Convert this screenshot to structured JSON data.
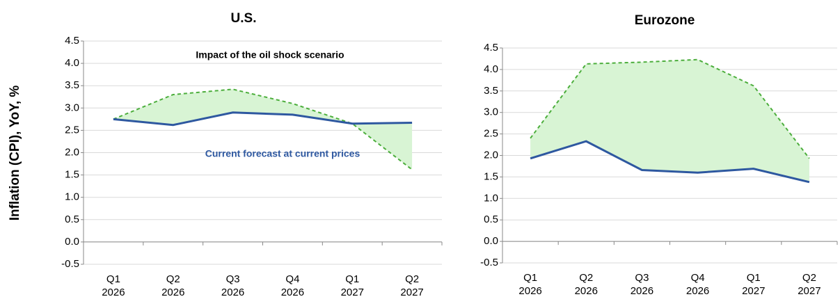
{
  "chart_data": [
    {
      "type": "line",
      "title": "U.S.",
      "ylabel": "Inflation (CPI), YoY, %",
      "annotations": [
        "Impact of the oil shock scenario",
        "Current forecast at current prices"
      ],
      "categories": [
        "Q1 2026",
        "Q2 2026",
        "Q3 2026",
        "Q4 2026",
        "Q1 2027",
        "Q2 2027"
      ],
      "series": [
        {
          "color": "#2e58a0",
          "style": "solid",
          "values": [
            2.75,
            2.62,
            2.9,
            2.85,
            2.65,
            2.67
          ]
        },
        {
          "color": "#4cae3c",
          "style": "dashed",
          "values": [
            2.75,
            3.3,
            3.42,
            3.1,
            2.65,
            1.62
          ]
        }
      ],
      "fill_between_color": "#d8f4d4",
      "ylim": [
        -0.5,
        4.5
      ],
      "yticks": [
        -0.5,
        {
          "value": 0,
          "label": "0.0"
        },
        0.5,
        {
          "value": 1,
          "label": "1.0"
        },
        1.5,
        {
          "value": 2,
          "label": "2.0"
        },
        2.5,
        {
          "value": 3,
          "label": "3.0"
        },
        3.5,
        {
          "value": 4,
          "label": "4.0"
        },
        4.5
      ],
      "grid": true
    },
    {
      "type": "line",
      "title": "Eurozone",
      "categories": [
        "Q1 2026",
        "Q2 2026",
        "Q3 2026",
        "Q4 2026",
        "Q1 2027",
        "Q2 2027"
      ],
      "series": [
        {
          "color": "#2e58a0",
          "style": "solid",
          "values": [
            1.93,
            2.33,
            1.66,
            1.6,
            1.69,
            1.38
          ]
        },
        {
          "color": "#4cae3c",
          "style": "dashed",
          "values": [
            2.4,
            4.13,
            4.17,
            4.23,
            3.62,
            1.93
          ]
        }
      ],
      "fill_between_color": "#d8f4d4",
      "ylim": [
        -0.5,
        4.5
      ],
      "yticks": [
        -0.5,
        {
          "value": 0,
          "label": "0.0"
        },
        0.5,
        {
          "value": 1,
          "label": "1.0"
        },
        1.5,
        {
          "value": 2,
          "label": "2.0"
        },
        2.5,
        {
          "value": 3,
          "label": "3.0"
        },
        3.5,
        {
          "value": 4,
          "label": "4.0"
        },
        4.5
      ],
      "grid": true
    }
  ]
}
